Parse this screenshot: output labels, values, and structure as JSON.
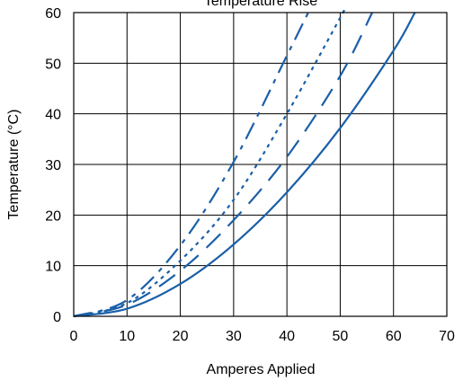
{
  "chart_data": {
    "type": "line",
    "title": "Temperature Rise",
    "xlabel": "Amperes Applied",
    "ylabel": "Temperature (°C)",
    "xlim": [
      0,
      70
    ],
    "ylim": [
      0,
      60
    ],
    "xticks": [
      0,
      10,
      20,
      30,
      40,
      50,
      60,
      70
    ],
    "yticks": [
      0,
      10,
      20,
      30,
      40,
      50,
      60
    ],
    "grid": true,
    "line_color": "#1a5fa8",
    "series": [
      {
        "style": "solid",
        "x": [
          0,
          10,
          20,
          30,
          40,
          50,
          60,
          64
        ],
        "y": [
          0,
          1.5,
          6.4,
          14.2,
          24.5,
          37.2,
          52.5,
          60
        ]
      },
      {
        "style": "long-dash",
        "x": [
          0,
          10,
          20,
          30,
          40,
          50,
          56
        ],
        "y": [
          0,
          2.3,
          9.0,
          19.0,
          31.5,
          47.5,
          60
        ]
      },
      {
        "style": "dotted",
        "x": [
          0,
          10,
          20,
          30,
          40,
          50,
          50.5
        ],
        "y": [
          0,
          2.6,
          11.0,
          23.0,
          40.0,
          59.0,
          60
        ]
      },
      {
        "style": "dash-dot",
        "x": [
          0,
          10,
          20,
          30,
          40,
          44
        ],
        "y": [
          0,
          3.2,
          14.0,
          30.5,
          51.5,
          60
        ]
      }
    ]
  }
}
